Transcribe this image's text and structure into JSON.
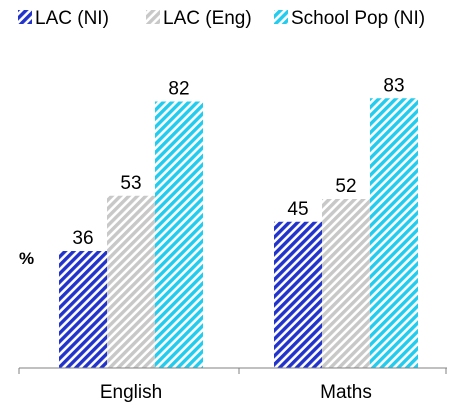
{
  "chart_data": {
    "type": "bar",
    "categories": [
      "English",
      "Maths"
    ],
    "series": [
      {
        "name": "LAC (NI)",
        "values": [
          36,
          45
        ],
        "color": "#2233cc",
        "pattern": "diagonal-hatch"
      },
      {
        "name": "LAC (Eng)",
        "values": [
          53,
          52
        ],
        "color": "#c8c8c8",
        "pattern": "diagonal-hatch"
      },
      {
        "name": "School Pop (NI)",
        "values": [
          82,
          83
        ],
        "color": "#22ccee",
        "pattern": "diagonal-hatch"
      }
    ],
    "ylabel": "%",
    "ylim": [
      0,
      100
    ],
    "legend": "top",
    "grid": false,
    "data_labels": true
  }
}
